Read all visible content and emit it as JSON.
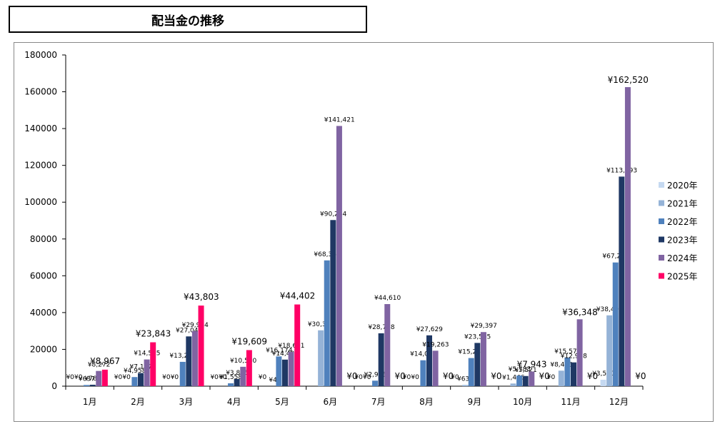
{
  "title": "配当金の推移",
  "chart_data": {
    "type": "bar",
    "categories": [
      "1月",
      "2月",
      "3月",
      "4月",
      "5月",
      "6月",
      "7月",
      "8月",
      "9月",
      "10月",
      "11月",
      "12月"
    ],
    "ylim": [
      0,
      180000
    ],
    "yticks": [
      "0",
      "20000",
      "40000",
      "60000",
      "80000",
      "100000",
      "120000",
      "140000",
      "160000",
      "180000"
    ],
    "grid": false,
    "legend": "right",
    "series": [
      {
        "name": "2020年",
        "color": "#c5d9f1",
        "values": [
          0,
          0,
          0,
          0,
          0,
          0,
          0,
          0,
          0,
          0,
          0,
          3500
        ],
        "labels": [
          "¥0",
          "¥0",
          "¥0",
          "¥0",
          "¥0",
          "",
          "¥0",
          "¥0",
          "¥0",
          "",
          "¥0",
          "¥3,500"
        ]
      },
      {
        "name": "2021年",
        "color": "#95b3d7",
        "values": [
          0,
          0,
          0,
          0,
          4,
          30354,
          0,
          0,
          632,
          1446,
          8433,
          38496
        ],
        "labels": [
          "¥0",
          "¥0",
          "¥0",
          "¥0",
          "¥4",
          "¥30,354",
          "¥0",
          "¥0",
          "¥632",
          "¥1,446",
          "¥8,433",
          "¥38,496"
        ]
      },
      {
        "name": "2022年",
        "color": "#4f81bd",
        "values": [
          637,
          4958,
          13218,
          1558,
          16174,
          68360,
          2983,
          14076,
          15281,
          5783,
          15579,
          67226
        ],
        "labels": [
          "¥637",
          "¥4,958",
          "¥13,218",
          "¥1,558",
          "¥16,174",
          "¥68,360",
          "¥2,983",
          "¥14,076",
          "¥15,281",
          "¥5,783",
          "¥15,579",
          "¥67,226"
        ]
      },
      {
        "name": "2023年",
        "color": "#1f3864",
        "values": [
          785,
          7137,
          27044,
          3876,
          14434,
          90284,
          28738,
          27629,
          23505,
          5521,
          12918,
          113893
        ],
        "labels": [
          "¥785",
          "¥7,137",
          "¥27,044",
          "¥3,876",
          "¥14,434",
          "¥90,284",
          "¥28,738",
          "¥27,629",
          "¥23,505",
          "¥5,521",
          "¥12,918",
          "¥113,893"
        ]
      },
      {
        "name": "2024年",
        "color": "#8064a2",
        "values": [
          8272,
          14515,
          29944,
          10530,
          18601,
          141421,
          44610,
          19263,
          29397,
          7943,
          36348,
          162520
        ],
        "labels": [
          "¥8,272",
          "¥14,515",
          "¥29,944",
          "¥10,530",
          "¥18,601",
          "¥141,421",
          "¥44,610",
          "¥19,263",
          "¥29,397",
          "¥7,943",
          "¥36,348",
          "¥162,520"
        ]
      },
      {
        "name": "2025年",
        "color": "#ff0066",
        "values": [
          8967,
          23843,
          43803,
          19609,
          44402,
          0,
          0,
          0,
          0,
          0,
          0,
          0
        ],
        "labels": [
          "¥8,967",
          "¥23,843",
          "¥43,803",
          "¥19,609",
          "¥44,402",
          "¥0",
          "¥0",
          "¥0",
          "¥0",
          "¥0",
          "¥0",
          "¥0"
        ]
      }
    ]
  }
}
